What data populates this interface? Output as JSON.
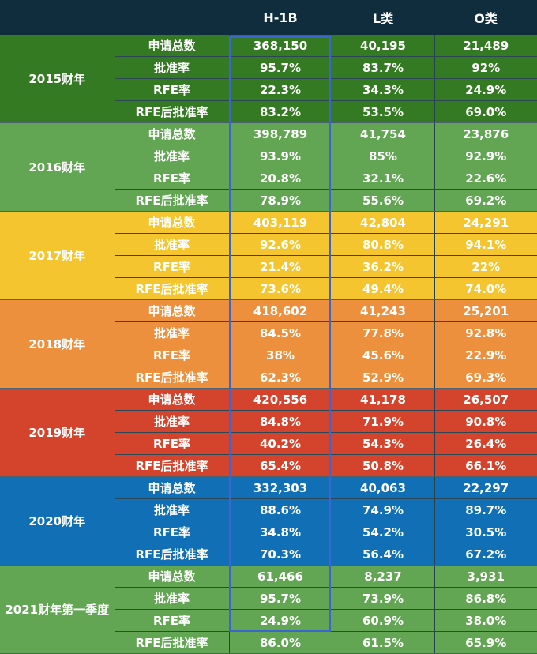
{
  "header": {
    "blank": "",
    "h1b": "H-1B",
    "l": "L类",
    "o": "O类"
  },
  "groups": [
    {
      "year": "2015财年",
      "rows": [
        {
          "label": "申请总数",
          "h1b": "368,150",
          "l": "40,195",
          "o": "21,489"
        },
        {
          "label": "批准率",
          "h1b": "95.7%",
          "l": "83.7%",
          "o": "92%"
        },
        {
          "label": "RFE率",
          "h1b": "22.3%",
          "l": "34.3%",
          "o": "24.9%"
        },
        {
          "label": "RFE后批准率",
          "h1b": "83.2%",
          "l": "53.5%",
          "o": "69.0%"
        }
      ]
    },
    {
      "year": "2016财年",
      "rows": [
        {
          "label": "申请总数",
          "h1b": "398,789",
          "l": "41,754",
          "o": "23,876"
        },
        {
          "label": "批准率",
          "h1b": "93.9%",
          "l": "85%",
          "o": "92.9%"
        },
        {
          "label": "RFE率",
          "h1b": "20.8%",
          "l": "32.1%",
          "o": "22.6%"
        },
        {
          "label": "RFE后批准率",
          "h1b": "78.9%",
          "l": "55.6%",
          "o": "69.2%"
        }
      ]
    },
    {
      "year": "2017财年",
      "rows": [
        {
          "label": "申请总数",
          "h1b": "403,119",
          "l": "42,804",
          "o": "24,291"
        },
        {
          "label": "批准率",
          "h1b": "92.6%",
          "l": "80.8%",
          "o": "94.1%"
        },
        {
          "label": "RFE率",
          "h1b": "21.4%",
          "l": "36.2%",
          "o": "22%"
        },
        {
          "label": "RFE后批准率",
          "h1b": "73.6%",
          "l": "49.4%",
          "o": "74.0%"
        }
      ]
    },
    {
      "year": "2018财年",
      "rows": [
        {
          "label": "申请总数",
          "h1b": "418,602",
          "l": "41,243",
          "o": "25,201"
        },
        {
          "label": "批准率",
          "h1b": "84.5%",
          "l": "77.8%",
          "o": "92.8%"
        },
        {
          "label": "RFE率",
          "h1b": "38%",
          "l": "45.6%",
          "o": "22.9%"
        },
        {
          "label": "RFE后批准率",
          "h1b": "62.3%",
          "l": "52.9%",
          "o": "69.3%"
        }
      ]
    },
    {
      "year": "2019财年",
      "rows": [
        {
          "label": "申请总数",
          "h1b": "420,556",
          "l": "41,178",
          "o": "26,507"
        },
        {
          "label": "批准率",
          "h1b": "84.8%",
          "l": "71.9%",
          "o": "90.8%"
        },
        {
          "label": "RFE率",
          "h1b": "40.2%",
          "l": "54.3%",
          "o": "26.4%"
        },
        {
          "label": "RFE后批准率",
          "h1b": "65.4%",
          "l": "50.8%",
          "o": "66.1%"
        }
      ]
    },
    {
      "year": "2020财年",
      "rows": [
        {
          "label": "申请总数",
          "h1b": "332,303",
          "l": "40,063",
          "o": "22,297"
        },
        {
          "label": "批准率",
          "h1b": "88.6%",
          "l": "74.9%",
          "o": "89.7%"
        },
        {
          "label": "RFE率",
          "h1b": "34.8%",
          "l": "54.2%",
          "o": "30.5%"
        },
        {
          "label": "RFE后批准率",
          "h1b": "70.3%",
          "l": "56.4%",
          "o": "67.2%"
        }
      ]
    },
    {
      "year": "2021财年第一季度",
      "rows": [
        {
          "label": "申请总数",
          "h1b": "61,466",
          "l": "8,237",
          "o": "3,931"
        },
        {
          "label": "批准率",
          "h1b": "95.7%",
          "l": "73.9%",
          "o": "86.8%"
        },
        {
          "label": "RFE率",
          "h1b": "24.9%",
          "l": "60.9%",
          "o": "38.0%"
        },
        {
          "label": "RFE后批准率",
          "h1b": "86.0%",
          "l": "61.5%",
          "o": "65.9%"
        }
      ]
    }
  ],
  "colors": {
    "header_bg": "#0f2d3c",
    "fy2015": "#347a22",
    "fy2016": "#62a654",
    "fy2017": "#f4c52e",
    "fy2018": "#ec903d",
    "fy2019": "#d4432b",
    "fy2020": "#1170b5",
    "fy2021q1": "#62a654",
    "highlight_border": "#3b66cf"
  }
}
